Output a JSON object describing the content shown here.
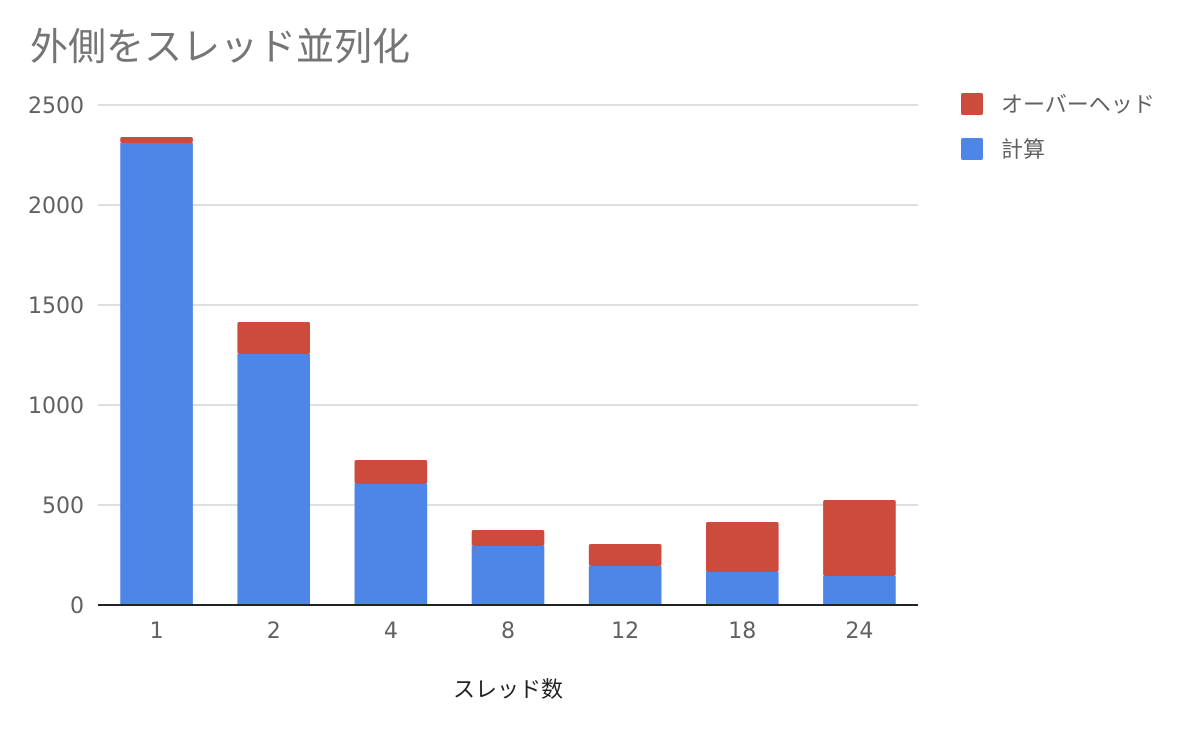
{
  "chart_data": {
    "type": "bar",
    "stacked": true,
    "title": "外側をスレッド並列化",
    "xlabel": "スレッド数",
    "ylabel": "",
    "categories": [
      "1",
      "2",
      "4",
      "8",
      "12",
      "18",
      "24"
    ],
    "series": [
      {
        "name": "計算",
        "color": "#4e86e8",
        "values": [
          2310,
          1255,
          605,
          295,
          195,
          165,
          145
        ]
      },
      {
        "name": "オーバーヘッド",
        "color": "#cc4b3c",
        "values": [
          30,
          160,
          120,
          80,
          110,
          250,
          380
        ]
      }
    ],
    "ylim": [
      0,
      2500
    ],
    "yticks": [
      "0",
      "500",
      "1000",
      "1500",
      "2000",
      "2500"
    ],
    "grid": true,
    "legend_position": "right"
  }
}
